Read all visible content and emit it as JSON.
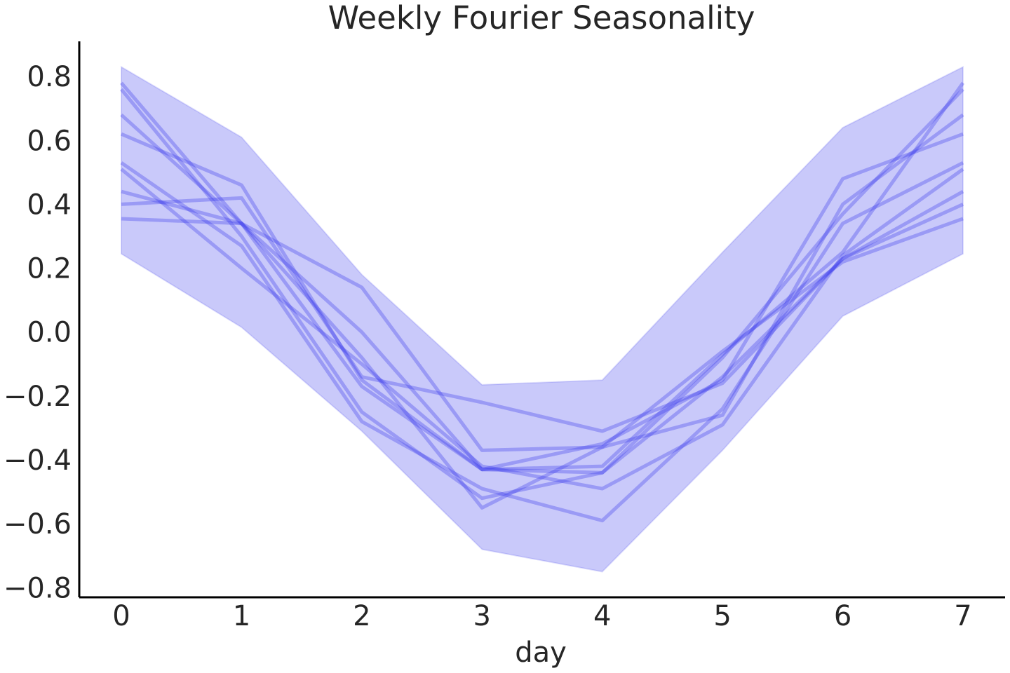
{
  "chart_data": {
    "type": "line",
    "title": "Weekly Fourier Seasonality",
    "xlabel": "day",
    "ylabel": "",
    "x": [
      0,
      1,
      2,
      3,
      4,
      5,
      6,
      7
    ],
    "xlim": [
      -0.35,
      7.35
    ],
    "ylim": [
      -0.83,
      0.91
    ],
    "x_ticks": [
      0,
      1,
      2,
      3,
      4,
      5,
      6,
      7
    ],
    "y_ticks": [
      -0.8,
      -0.6,
      -0.4,
      -0.2,
      0.0,
      0.2,
      0.4,
      0.6,
      0.8
    ],
    "x_tick_labels": [
      "0",
      "1",
      "2",
      "3",
      "4",
      "5",
      "6",
      "7"
    ],
    "y_tick_labels": [
      "−0.8",
      "−0.6",
      "−0.4",
      "−0.2",
      "0.0",
      "0.2",
      "0.4",
      "0.6",
      "0.8"
    ],
    "grid": false,
    "band": {
      "upper": [
        0.83,
        0.61,
        0.18,
        -0.165,
        -0.15,
        0.25,
        0.64,
        0.83
      ],
      "lower": [
        0.245,
        0.015,
        -0.31,
        -0.68,
        -0.75,
        -0.37,
        0.05,
        0.245
      ]
    },
    "series": [
      {
        "values": [
          0.78,
          0.34,
          -0.17,
          -0.43,
          -0.42,
          -0.07,
          0.25,
          0.78
        ]
      },
      {
        "values": [
          0.76,
          0.3,
          -0.25,
          -0.52,
          -0.44,
          -0.08,
          0.37,
          0.76
        ]
      },
      {
        "values": [
          0.68,
          0.34,
          -0.08,
          -0.55,
          -0.36,
          -0.26,
          0.4,
          0.68
        ]
      },
      {
        "values": [
          0.62,
          0.46,
          -0.15,
          -0.43,
          -0.35,
          -0.15,
          0.48,
          0.62
        ]
      },
      {
        "values": [
          0.53,
          0.27,
          -0.28,
          -0.49,
          -0.59,
          -0.24,
          0.34,
          0.53
        ]
      },
      {
        "values": [
          0.51,
          0.2,
          -0.1,
          -0.42,
          -0.49,
          -0.29,
          0.24,
          0.51
        ]
      },
      {
        "values": [
          0.44,
          0.34,
          0.0,
          -0.43,
          -0.44,
          -0.14,
          0.23,
          0.44
        ]
      },
      {
        "values": [
          0.4,
          0.42,
          -0.14,
          -0.22,
          -0.31,
          -0.16,
          0.23,
          0.4
        ]
      },
      {
        "values": [
          0.355,
          0.34,
          0.14,
          -0.37,
          -0.36,
          -0.06,
          0.22,
          0.355
        ]
      }
    ],
    "colors": {
      "band_fill": "#0000e6",
      "band_opacity": 0.21,
      "line": "#3a3aee",
      "line_opacity": 0.33,
      "axis": "#000000",
      "text": "#262626"
    }
  }
}
